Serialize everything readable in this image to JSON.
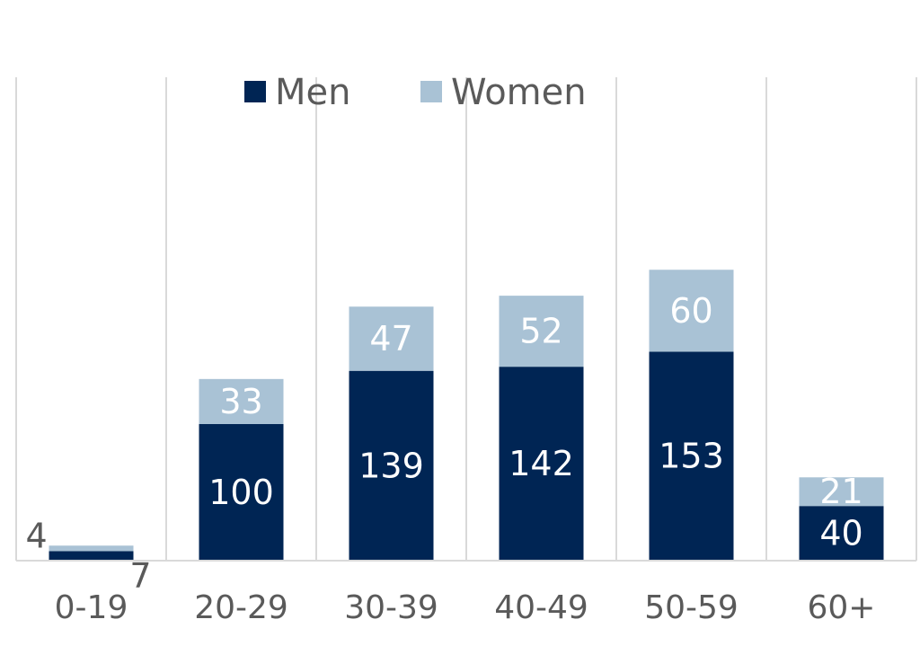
{
  "chart_data": {
    "type": "bar",
    "stacked": true,
    "categories": [
      "0-19",
      "20-29",
      "30-39",
      "40-49",
      "50-59",
      "60+"
    ],
    "series": [
      {
        "name": "Men",
        "values": [
          7,
          100,
          139,
          142,
          153,
          40
        ],
        "color": "#002554"
      },
      {
        "name": "Women",
        "values": [
          4,
          33,
          47,
          52,
          60,
          21
        ],
        "color": "#a9c2d5"
      }
    ],
    "ylim": [
      0,
      250
    ],
    "grid": "vertical category separators",
    "legend_position": "top-center"
  },
  "colors": {
    "axis_line": "#d9d9d9",
    "grid_line": "#d9d9d9",
    "tick_text": "#5a5a5a",
    "label_inside": "#ffffff"
  }
}
